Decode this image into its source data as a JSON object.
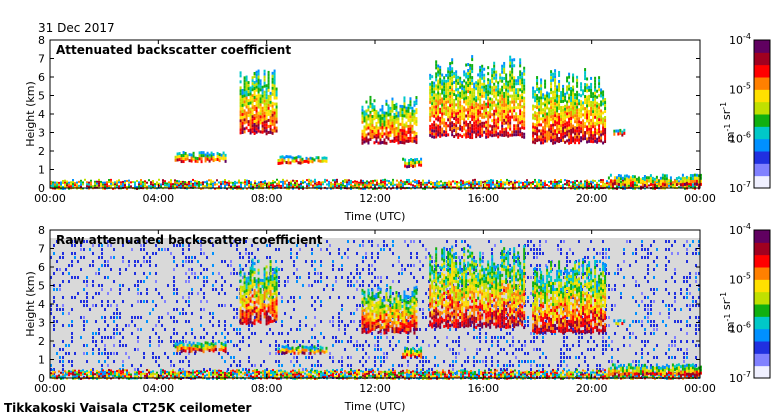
{
  "date_label": "31 Dec 2017",
  "footer": "Tikkakoski Vaisala CT25K ceilometer",
  "colors": {
    "background_gray": "#d9d9d9",
    "colormap": [
      "#f0f0ff",
      "#8080ff",
      "#2030e0",
      "#0090ff",
      "#00c8c8",
      "#10b010",
      "#c0e000",
      "#ffe000",
      "#ff8000",
      "#ff0000",
      "#a00020",
      "#600060"
    ]
  },
  "chart_data": [
    {
      "type": "heatmap",
      "title": "Attenuated backscatter coefficient",
      "xlabel": "Time (UTC)",
      "ylabel": "Height (km)",
      "xticks": [
        "00:00",
        "04:00",
        "08:00",
        "12:00",
        "16:00",
        "20:00",
        "00:00"
      ],
      "yticks": [
        "0",
        "1",
        "2",
        "3",
        "4",
        "5",
        "6",
        "7",
        "8"
      ],
      "xlim_hours": [
        0,
        24
      ],
      "ylim_km": [
        0,
        8
      ],
      "colorbar": {
        "label": "m-1 sr-1",
        "scale": "log",
        "range": [
          1e-07,
          0.0001
        ],
        "ticks": [
          "10-7",
          "10-6",
          "10-5",
          "10-4"
        ]
      },
      "features": [
        {
          "kind": "surface_layer",
          "start_h": 0,
          "end_h": 24,
          "base_km": 0,
          "top_km": 0.5
        },
        {
          "kind": "cloud",
          "start_h": 4.6,
          "end_h": 6.5,
          "base_km": 1.5,
          "top_km": 2.0
        },
        {
          "kind": "cloud",
          "start_h": 7.0,
          "end_h": 8.4,
          "base_km": 3.0,
          "top_km": 6.5
        },
        {
          "kind": "cloud",
          "start_h": 8.4,
          "end_h": 10.2,
          "base_km": 1.4,
          "top_km": 1.8
        },
        {
          "kind": "cloud",
          "start_h": 11.5,
          "end_h": 13.5,
          "base_km": 2.5,
          "top_km": 5.0
        },
        {
          "kind": "cloud",
          "start_h": 13.0,
          "end_h": 13.7,
          "base_km": 1.2,
          "top_km": 1.7
        },
        {
          "kind": "cloud",
          "start_h": 14.0,
          "end_h": 17.5,
          "base_km": 2.8,
          "top_km": 7.2
        },
        {
          "kind": "cloud",
          "start_h": 17.8,
          "end_h": 20.5,
          "base_km": 2.5,
          "top_km": 6.5
        },
        {
          "kind": "cloud",
          "start_h": 20.8,
          "end_h": 21.2,
          "base_km": 2.9,
          "top_km": 3.2
        },
        {
          "kind": "low_layer",
          "start_h": 20.6,
          "end_h": 24,
          "base_km": 0.2,
          "top_km": 0.8
        }
      ]
    },
    {
      "type": "heatmap",
      "title": "Raw attenuated backscatter coefficient",
      "xlabel": "Time (UTC)",
      "ylabel": "Height (km)",
      "xticks": [
        "00:00",
        "04:00",
        "08:00",
        "12:00",
        "16:00",
        "20:00",
        "00:00"
      ],
      "yticks": [
        "0",
        "1",
        "2",
        "3",
        "4",
        "5",
        "6",
        "7",
        "8"
      ],
      "xlim_hours": [
        0,
        24
      ],
      "ylim_km": [
        0,
        8
      ],
      "colorbar": {
        "label": "m-1 sr-1",
        "scale": "log",
        "range": [
          1e-07,
          0.0001
        ],
        "ticks": [
          "10-7",
          "10-6",
          "10-5",
          "10-4"
        ]
      }
    }
  ]
}
